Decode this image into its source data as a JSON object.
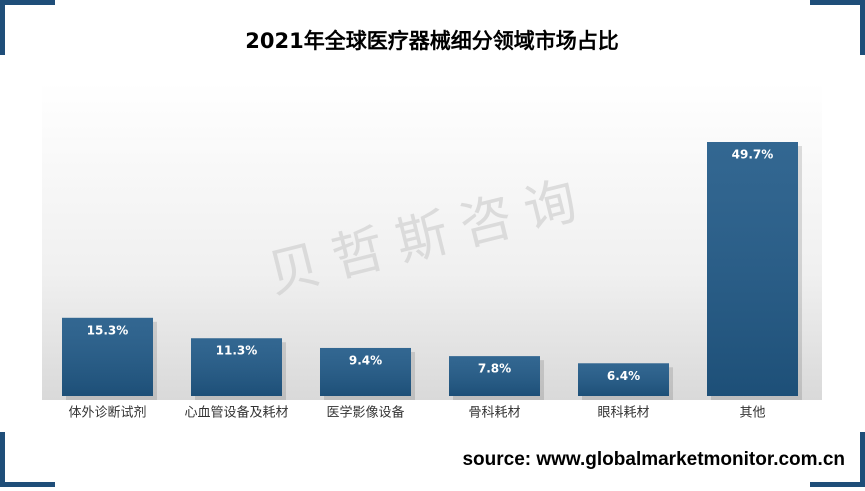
{
  "chart_data": {
    "type": "bar",
    "title": "2021年全球医疗器械细分领域市场占比",
    "categories": [
      "体外诊断试剂",
      "心血管设备及耗材",
      "医学影像设备",
      "骨科耗材",
      "眼科耗材",
      "其他"
    ],
    "values": [
      15.3,
      11.3,
      9.4,
      7.8,
      6.4,
      49.7
    ],
    "value_labels": [
      "15.3%",
      "11.3%",
      "9.4%",
      "7.8%",
      "6.4%",
      "49.7%"
    ],
    "color": "#215a88",
    "watermark": "贝哲斯咨询",
    "source": "source: www.globalmarketmonitor.com.cn"
  }
}
